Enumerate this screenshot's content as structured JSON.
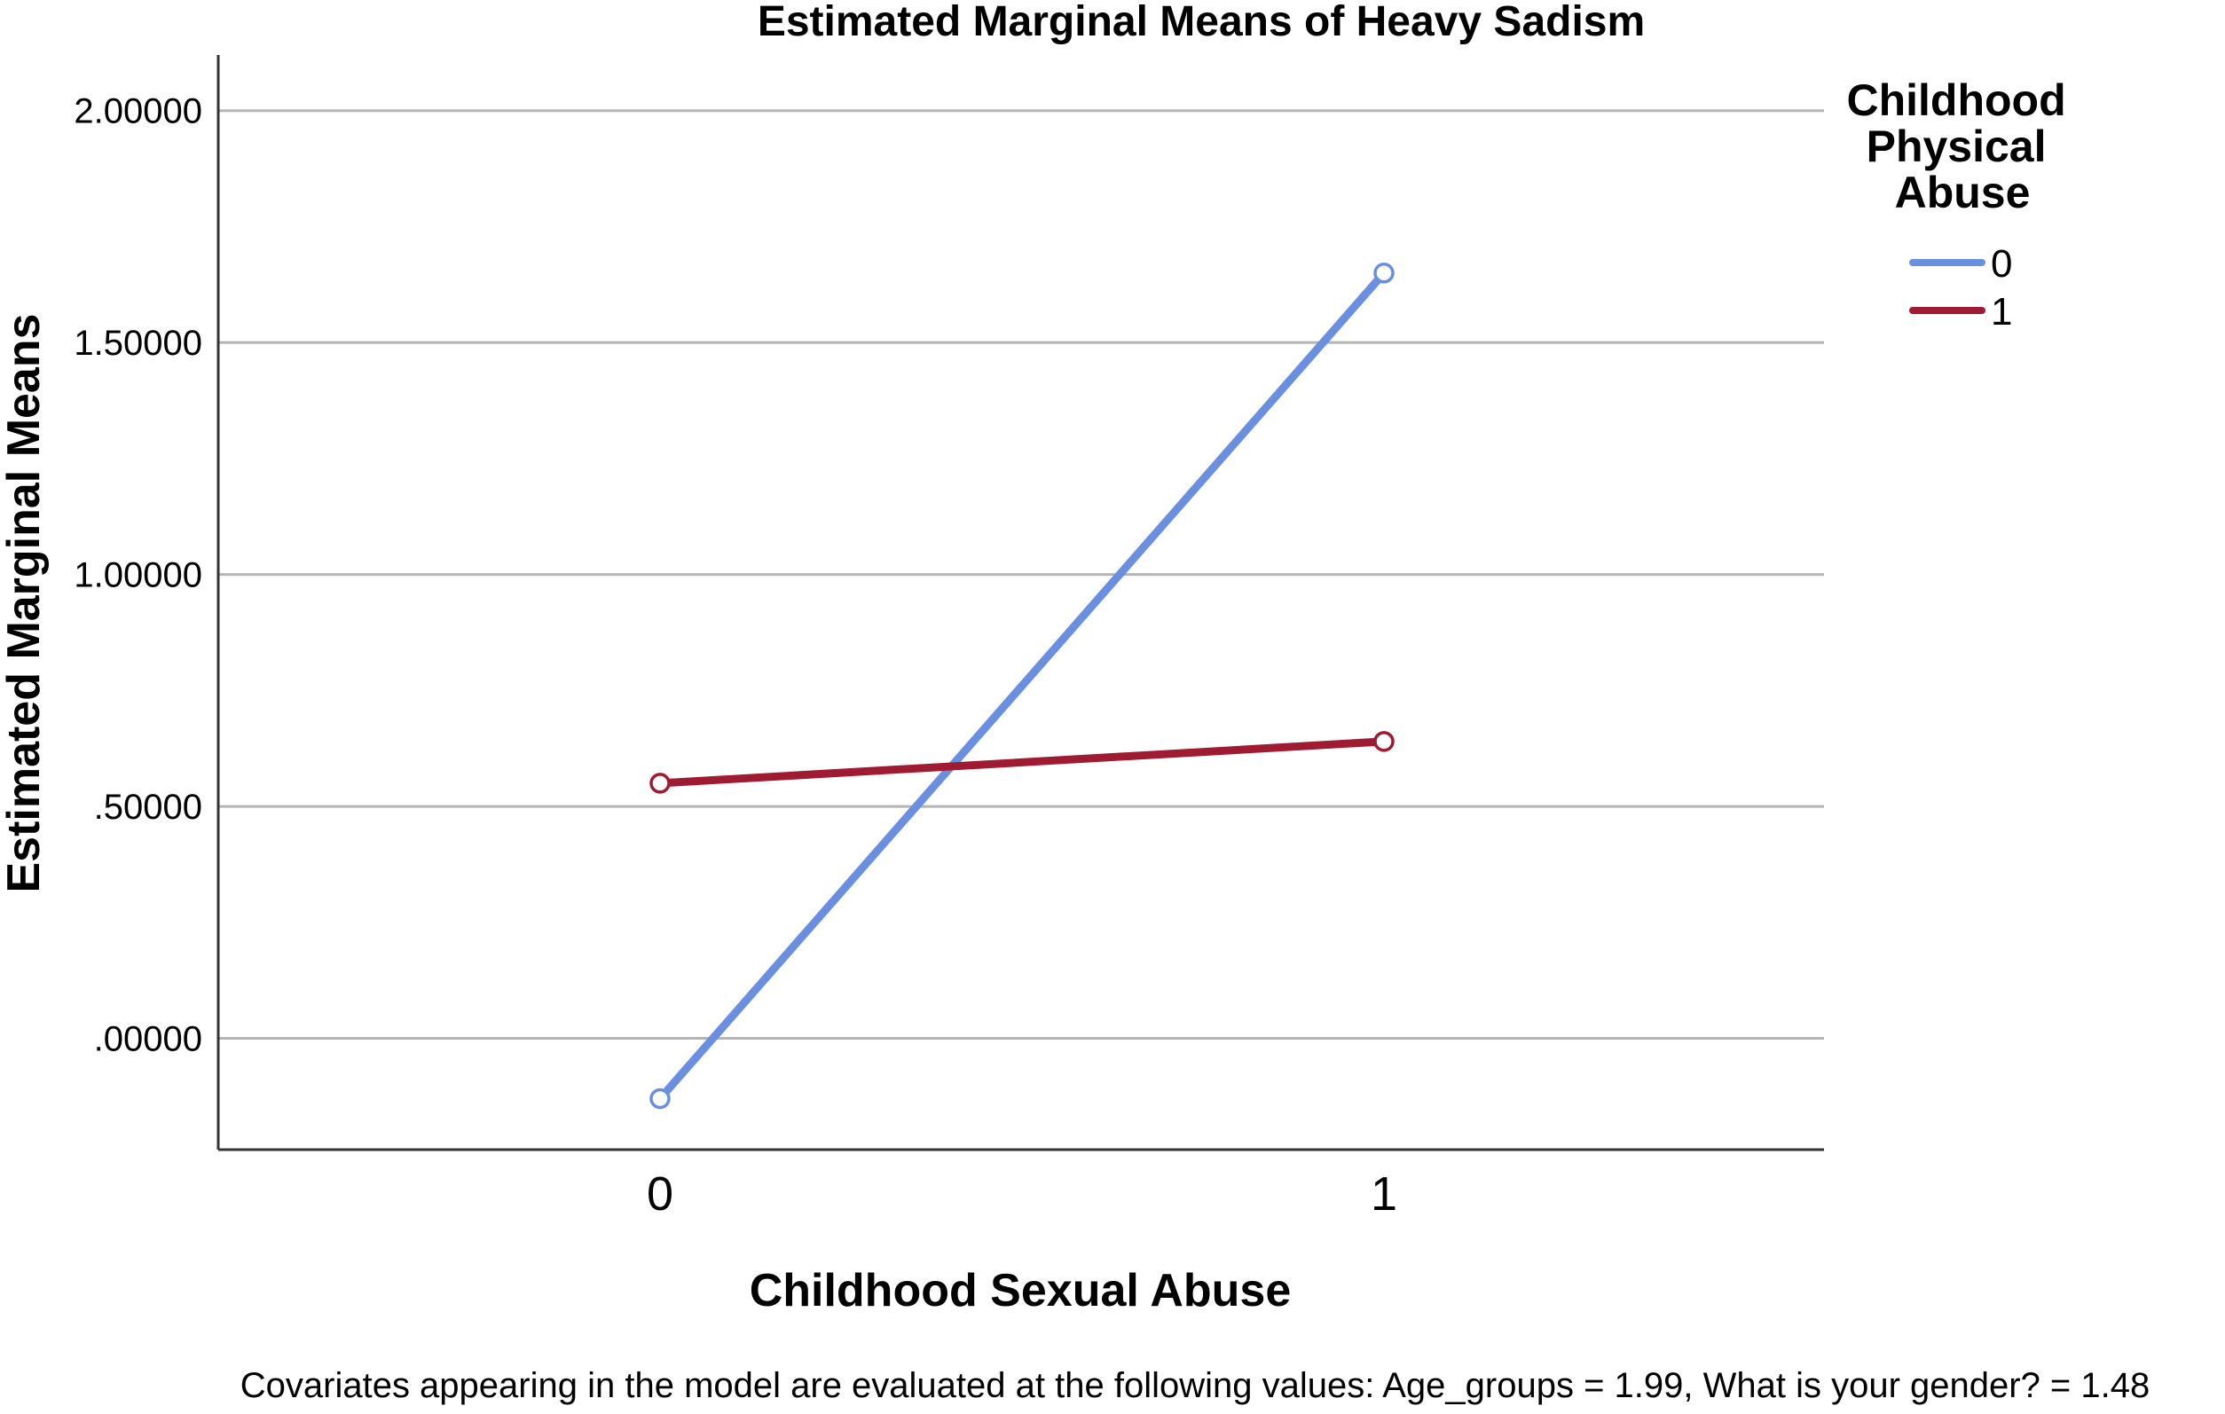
{
  "chart_data": {
    "type": "line",
    "title": "Estimated Marginal Means of Heavy Sadism",
    "xlabel": "Childhood Sexual Abuse",
    "ylabel": "Estimated Marginal Means",
    "categories": [
      "0",
      "1"
    ],
    "ylim": [
      -0.24,
      2.12
    ],
    "yticks": [
      0.0,
      0.5,
      1.0,
      1.5,
      2.0
    ],
    "ytick_labels": [
      ".00000",
      ".50000",
      "1.00000",
      "1.50000",
      "2.00000"
    ],
    "grid": true,
    "legend_title": "Childhood Physical Abuse",
    "legend_title_lines": [
      "Childhood",
      "Physical",
      "Abuse"
    ],
    "legend_position": "right",
    "series": [
      {
        "name": "0",
        "color": "#6a8ee0",
        "values": [
          -0.13,
          1.65
        ]
      },
      {
        "name": "1",
        "color": "#9e1b32",
        "values": [
          0.55,
          0.64
        ]
      }
    ],
    "footnote": "Covariates appearing in the model are evaluated at the following values: Age_groups = 1.99, What is your gender? = 1.48"
  }
}
